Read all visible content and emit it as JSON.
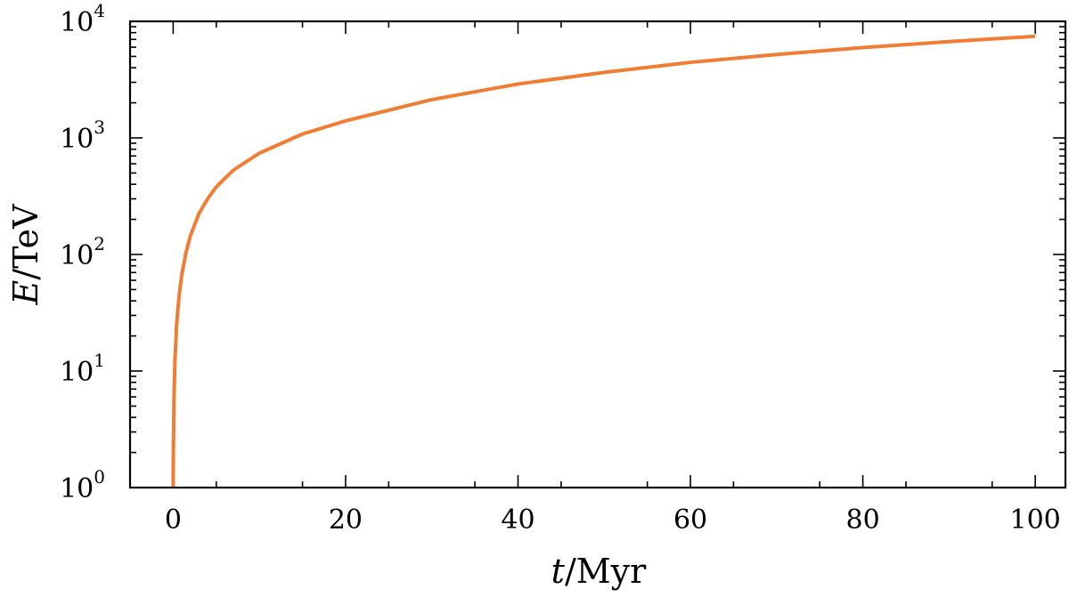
{
  "chart_data": {
    "type": "line",
    "xlabel": "t/Myr",
    "ylabel": "E/TeV",
    "xlim": [
      -5,
      103.5
    ],
    "ylim": [
      1,
      10000
    ],
    "yscale": "log",
    "grid": false,
    "legend": "none",
    "xticks": [
      {
        "value": 0,
        "label": "0"
      },
      {
        "value": 20,
        "label": "20"
      },
      {
        "value": 40,
        "label": "40"
      },
      {
        "value": 60,
        "label": "60"
      },
      {
        "value": 80,
        "label": "80"
      },
      {
        "value": 100,
        "label": "100"
      }
    ],
    "yticks": [
      {
        "value": 1,
        "base": "10",
        "exp": "0"
      },
      {
        "value": 10,
        "base": "10",
        "exp": "1"
      },
      {
        "value": 100,
        "base": "10",
        "exp": "2"
      },
      {
        "value": 1000,
        "base": "10",
        "exp": "3"
      },
      {
        "value": 10000,
        "base": "10",
        "exp": "4"
      }
    ],
    "series": [
      {
        "color": "#f07d33",
        "x": [
          0,
          0.02,
          0.05,
          0.1,
          0.2,
          0.4,
          0.7,
          1.0,
          1.5,
          2,
          3,
          4,
          5,
          7,
          10,
          15,
          20,
          30,
          40,
          50,
          60,
          70,
          80,
          90,
          100
        ],
        "y": [
          1,
          2,
          3,
          6,
          12,
          25,
          45,
          67,
          105,
          145,
          225,
          300,
          380,
          530,
          740,
          1080,
          1400,
          2130,
          2900,
          3650,
          4450,
          5200,
          5950,
          6700,
          7450
        ]
      }
    ]
  }
}
